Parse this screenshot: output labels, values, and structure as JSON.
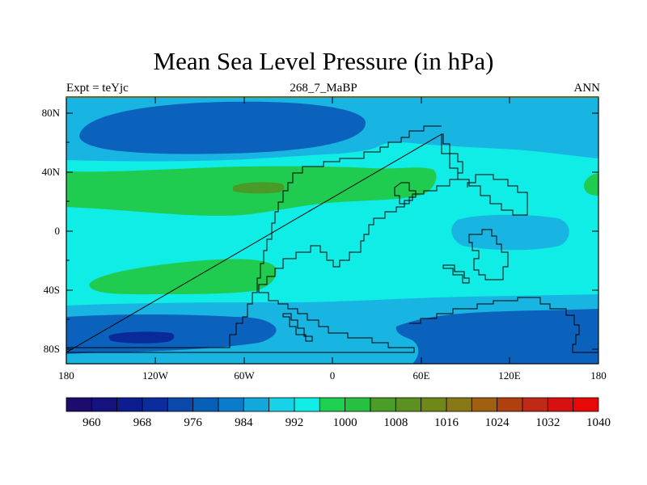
{
  "title": "Mean Sea Level Pressure (in hPa)",
  "subtitle_left": "Expt = teYjc",
  "subtitle_center": "268_7_MaBP",
  "subtitle_right": "ANN",
  "lat_labels": [
    "80N",
    "40N",
    "0",
    "40S",
    "80S"
  ],
  "lon_labels": [
    "180",
    "120W",
    "60W",
    "0",
    "60E",
    "120E",
    "180"
  ],
  "colorbar": {
    "labels": [
      "960",
      "968",
      "976",
      "984",
      "992",
      "1000",
      "1008",
      "1016",
      "1024",
      "1032",
      "1040"
    ],
    "colors": [
      "#1f0a6e",
      "#16127e",
      "#0d1c8e",
      "#0a2c9c",
      "#0a48aa",
      "#0660b8",
      "#0a7ccc",
      "#12a8dc",
      "#18d2e8",
      "#10ece6",
      "#1ed050",
      "#28c040",
      "#4a9e28",
      "#5c9020",
      "#708818",
      "#887818",
      "#a06010",
      "#b04010",
      "#c02818",
      "#d81010",
      "#e80808"
    ]
  },
  "chart_data": {
    "type": "heatmap",
    "variable": "Mean Sea Level Pressure",
    "units": "hPa",
    "experiment": "teYjc",
    "period": "268_7_MaBP",
    "season": "ANN",
    "contour_levels": [
      960,
      964,
      968,
      972,
      976,
      980,
      984,
      988,
      992,
      996,
      1000,
      1004,
      1008,
      1012,
      1016,
      1020,
      1024,
      1028,
      1032,
      1036,
      1040
    ],
    "lon_range": [
      -180,
      180
    ],
    "lat_range": [
      -90,
      90
    ],
    "regions": [
      {
        "region": "background",
        "class": "996-1000"
      },
      {
        "region": "northern polar band",
        "class": "992-996"
      },
      {
        "region": "north Pacific low",
        "class": "984-988"
      },
      {
        "region": "northern subtropical high belt",
        "class": "1000-1004"
      },
      {
        "region": "northern subtropical high core",
        "class": "1004-1008"
      },
      {
        "region": "southern subtropical high",
        "class": "1000-1004"
      },
      {
        "region": "southern subpolar belt",
        "class": "988-992"
      },
      {
        "region": "southern low",
        "class": "984-988"
      },
      {
        "region": "southern low core",
        "class": "972-976"
      },
      {
        "region": "eastern equatorial trough",
        "class": "992-996"
      }
    ]
  }
}
